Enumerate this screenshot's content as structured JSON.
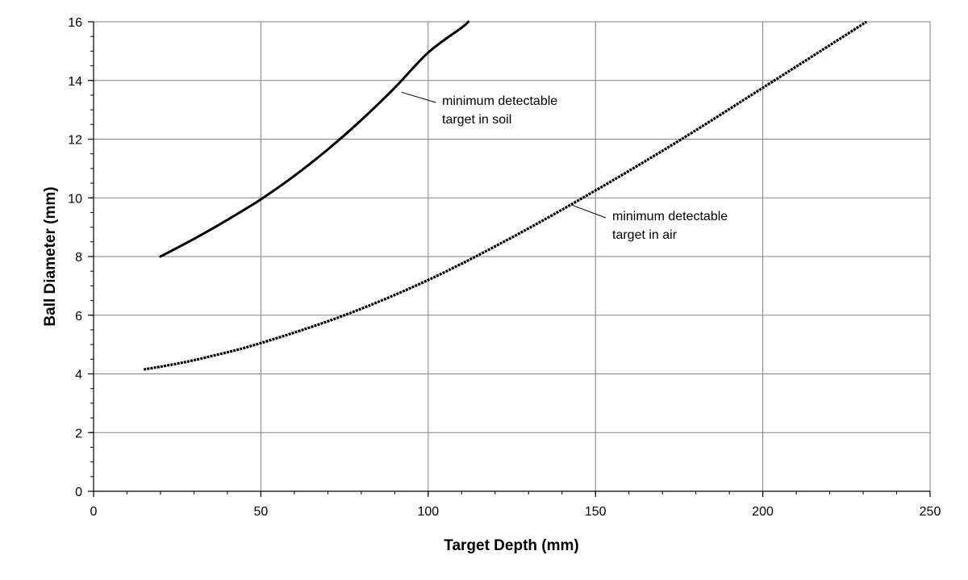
{
  "chart_data": {
    "type": "line",
    "title": "",
    "xlabel": "Target Depth (mm)",
    "ylabel": "Ball Diameter (mm)",
    "xlim": [
      0,
      250
    ],
    "ylim": [
      0,
      16
    ],
    "xticks": [
      0,
      50,
      100,
      150,
      200,
      250
    ],
    "yticks": [
      0,
      2,
      4,
      6,
      8,
      10,
      12,
      14,
      16
    ],
    "x_minor_step": 10,
    "y_minor_step": 0.5,
    "grid": true,
    "legend": "none",
    "series": [
      {
        "style": "solid",
        "color": "#000000",
        "x": [
          20,
          30,
          40,
          50,
          60,
          70,
          80,
          90,
          100,
          110,
          112
        ],
        "y": [
          8.0,
          8.6,
          9.25,
          9.95,
          10.75,
          11.65,
          12.65,
          13.75,
          14.95,
          15.8,
          16.0
        ]
      },
      {
        "style": "dashed",
        "color": "#000000",
        "x": [
          15,
          25,
          35,
          50,
          75,
          100,
          125,
          150,
          175,
          200,
          220,
          231
        ],
        "y": [
          4.15,
          4.35,
          4.6,
          5.05,
          6.0,
          7.2,
          8.65,
          10.25,
          11.95,
          13.75,
          15.2,
          16.0
        ]
      }
    ],
    "annotations": [
      {
        "lines": [
          "minimum detectable",
          "target in soil"
        ],
        "target": [
          92,
          13.6
        ]
      },
      {
        "lines": [
          "minimum detectable",
          "target in air"
        ],
        "target": [
          143,
          9.75
        ]
      }
    ]
  }
}
